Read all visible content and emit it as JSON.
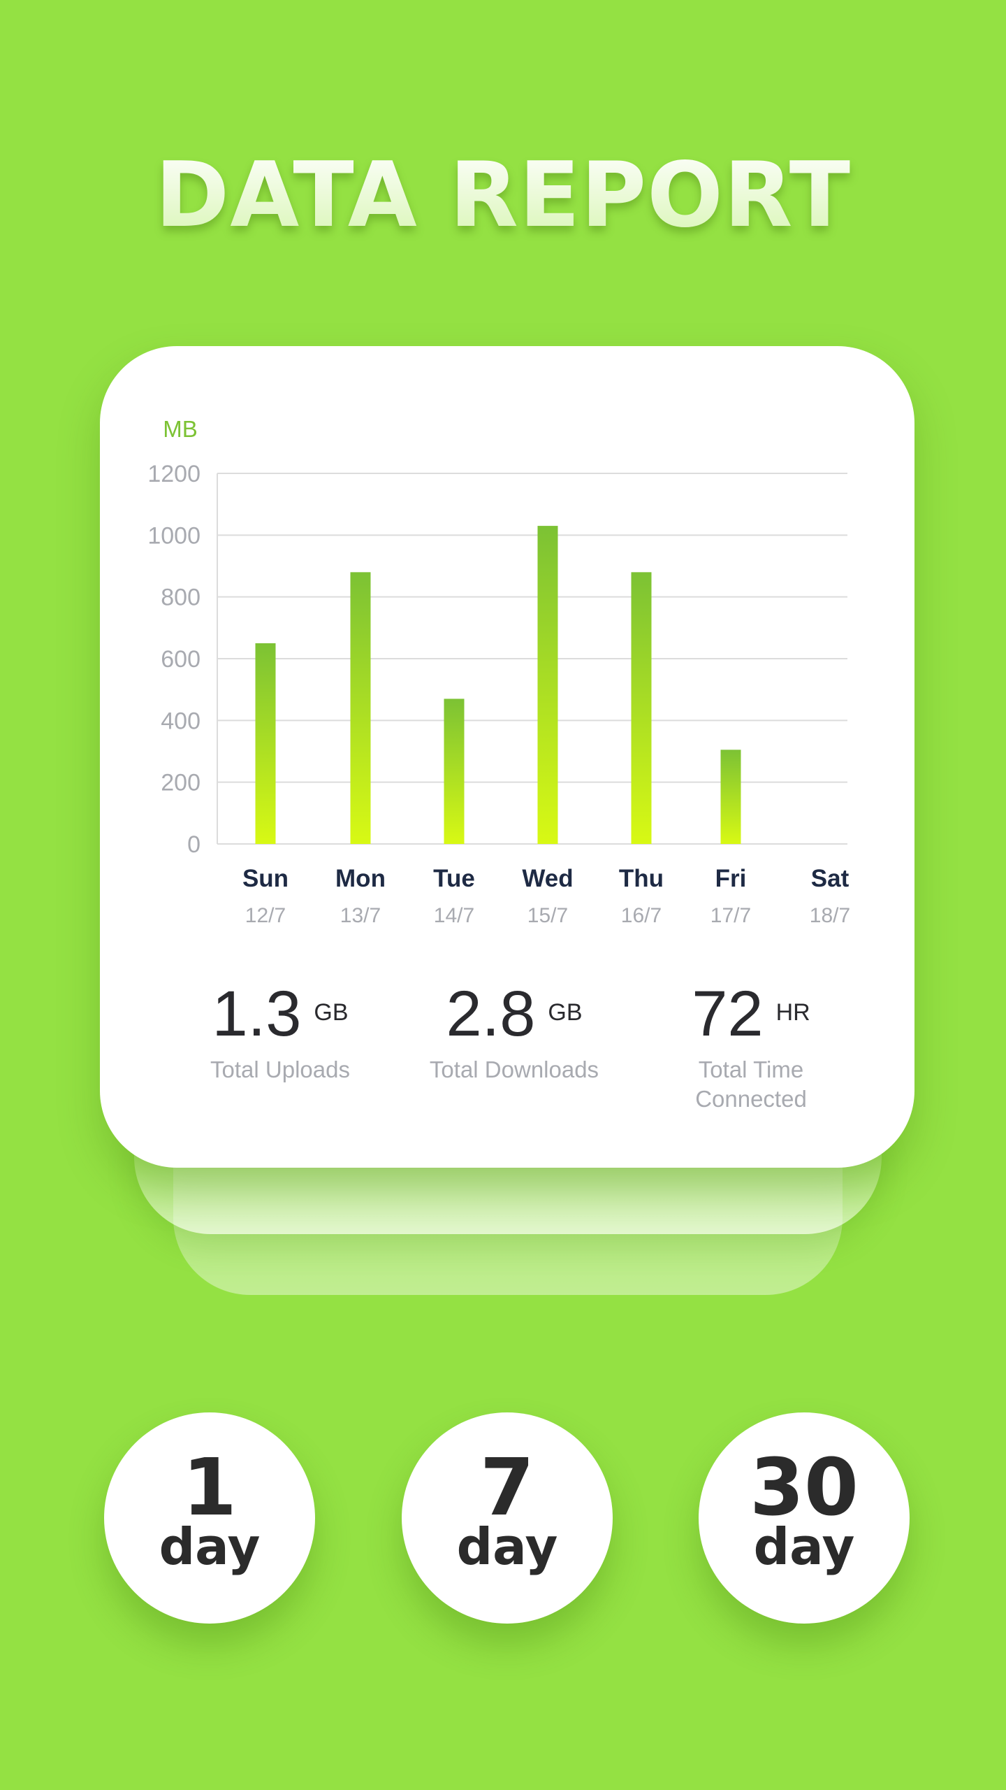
{
  "header": {
    "title": "DATA REPORT"
  },
  "chart_data": {
    "type": "bar",
    "ylabel": "MB",
    "ylim": [
      0,
      1200
    ],
    "yticks": [
      0,
      200,
      400,
      600,
      800,
      1000,
      1200
    ],
    "categories": [
      "Sun",
      "Mon",
      "Tue",
      "Wed",
      "Thu",
      "Fri",
      "Sat"
    ],
    "dates": [
      "12/7",
      "13/7",
      "14/7",
      "15/7",
      "16/7",
      "17/7",
      "18/7"
    ],
    "values": [
      650,
      880,
      470,
      1030,
      880,
      305,
      0
    ],
    "grid": true,
    "colors": {
      "bar_top": "#7cc234",
      "bar_bottom": "#d8f914",
      "grid": "#dcdcdc",
      "axis_label": "#7cc234"
    }
  },
  "stats": [
    {
      "value": "1.3",
      "unit": "GB",
      "label": "Total Uploads"
    },
    {
      "value": "2.8",
      "unit": "GB",
      "label": "Total Downloads"
    },
    {
      "value": "72",
      "unit": "HR",
      "label": "Total Time Connected"
    }
  ],
  "periods": [
    {
      "number": "1",
      "unit": "day"
    },
    {
      "number": "7",
      "unit": "day"
    },
    {
      "number": "30",
      "unit": "day"
    }
  ],
  "colors": {
    "background": "#94e143",
    "card": "#ffffff",
    "text_dark": "#2a2a2e",
    "text_muted": "#a8aab0",
    "day_label": "#1e2a44"
  }
}
